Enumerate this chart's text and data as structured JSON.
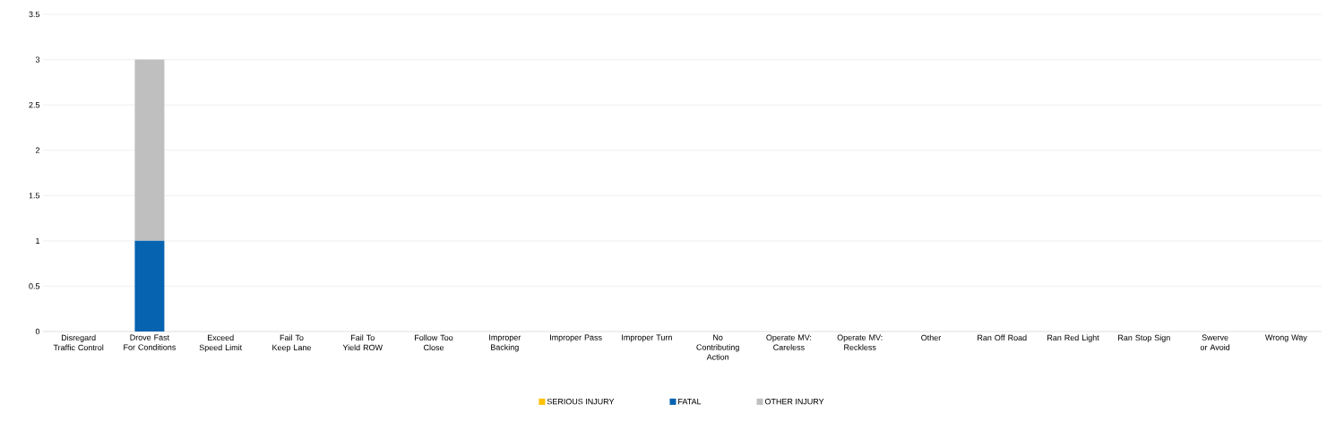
{
  "chart_data": {
    "type": "bar",
    "stacked": true,
    "categories": [
      "Disregard Traffic Control",
      "Drove Fast For Conditions",
      "Exceed Speed Limit",
      "Fail To Keep Lane",
      "Fail To Yield ROW",
      "Follow Too Close",
      "Improper Backing",
      "Improper Pass",
      "Improper Turn",
      "No Contributing Action",
      "Operate MV: Careless",
      "Operate MV: Reckless",
      "Other",
      "Ran Off Road",
      "Ran Red Light",
      "Ran Stop Sign",
      "Swerve or Avoid",
      "Wrong Way"
    ],
    "series": [
      {
        "name": "SERIOUS INJURY",
        "color": "#ffc000",
        "values": [
          0,
          0,
          0,
          0,
          0,
          0,
          0,
          0,
          0,
          0,
          0,
          0,
          0,
          0,
          0,
          0,
          0,
          0
        ]
      },
      {
        "name": "FATAL",
        "color": "#0563b0",
        "values": [
          0,
          1,
          0,
          0,
          0,
          0,
          0,
          0,
          0,
          0,
          0,
          0,
          0,
          0,
          0,
          0,
          0,
          0
        ]
      },
      {
        "name": "OTHER INJURY",
        "color": "#bfbfbf",
        "values": [
          0,
          2,
          0,
          0,
          0,
          0,
          0,
          0,
          0,
          0,
          0,
          0,
          0,
          0,
          0,
          0,
          0,
          0
        ]
      }
    ],
    "ylim": [
      0,
      3.5
    ],
    "yticks": [
      0,
      0.5,
      1,
      1.5,
      2,
      2.5,
      3,
      3.5
    ],
    "grid": "y",
    "legend": "bottom"
  }
}
